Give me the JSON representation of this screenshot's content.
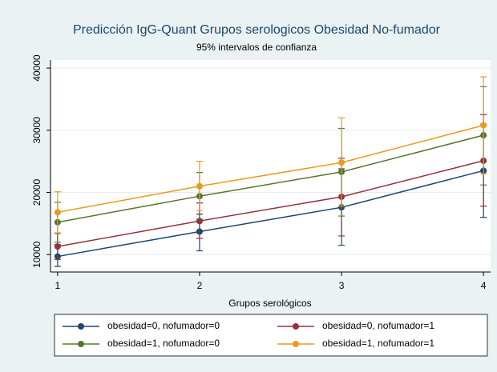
{
  "chart_data": {
    "type": "line",
    "title": "Predicción IgG-Quant Grupos serologicos Obesidad No-fumador",
    "subtitle": "95% intervalos de confianza",
    "xlabel": "Grupos serológicos",
    "x": [
      1,
      2,
      3,
      4
    ],
    "xlim": [
      0.95,
      4.05
    ],
    "xticks": [
      1,
      2,
      3,
      4
    ],
    "ylim": [
      7200,
      41300
    ],
    "yticks": [
      10000,
      20000,
      30000,
      40000
    ],
    "grid": true,
    "series": [
      {
        "name": "obesidad=0, nofumador=0",
        "color": "#1a476f",
        "values": [
          9700,
          13700,
          17600,
          23500
        ],
        "ci_low": [
          8100,
          10600,
          11500,
          16000
        ],
        "ci_high": [
          11600,
          16500,
          23800,
          31000
        ]
      },
      {
        "name": "obesidad=0, nofumador=1",
        "color": "#90353b",
        "values": [
          11300,
          15400,
          19300,
          25100
        ],
        "ci_low": [
          9200,
          12600,
          13000,
          17800
        ],
        "ci_high": [
          13400,
          18300,
          25500,
          32500
        ]
      },
      {
        "name": "obesidad=1, nofumador=0",
        "color": "#55752f",
        "values": [
          15200,
          19400,
          23300,
          29200
        ],
        "ci_low": [
          12000,
          15700,
          16200,
          21200
        ],
        "ci_high": [
          18400,
          23200,
          30300,
          37000
        ]
      },
      {
        "name": "obesidad=1, nofumador=1",
        "color": "#eb9a1a",
        "values": [
          16800,
          21000,
          24800,
          30800
        ],
        "ci_low": [
          13500,
          17100,
          17800,
          23000
        ],
        "ci_high": [
          20100,
          25000,
          32000,
          38600
        ]
      }
    ]
  }
}
